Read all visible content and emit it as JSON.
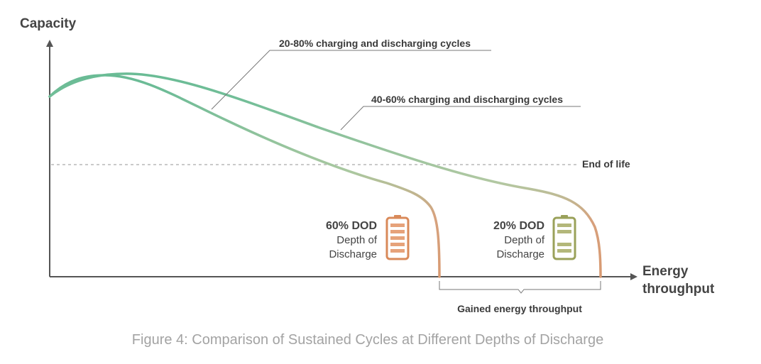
{
  "axes": {
    "y_label": "Capacity",
    "x_label_line1": "Energy",
    "x_label_line2": "throughput"
  },
  "curves": {
    "cycle_20_80_label": "20-80% charging and discharging cycles",
    "cycle_40_60_label": "40-60% charging and discharging cycles"
  },
  "end_of_life_label": "End of life",
  "batteries": {
    "dod60": {
      "title": "60% DOD",
      "line1": "Depth of",
      "line2": "Discharge",
      "color": "#d98a5a"
    },
    "dod20": {
      "title": "20% DOD",
      "line1": "Depth of",
      "line2": "Discharge",
      "color": "#9aa15a"
    }
  },
  "gained_label": "Gained energy throughput",
  "caption": "Figure 4: Comparison of Sustained Cycles at Different Depths of Discharge",
  "colors": {
    "curve_start": "#52b48c",
    "curve_mid": "#a9c9a0",
    "curve_end": "#d6a27e",
    "axis": "#555555"
  }
}
